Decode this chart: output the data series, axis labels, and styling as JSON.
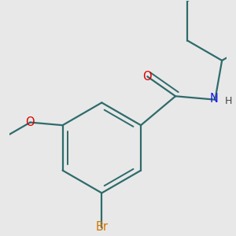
{
  "background_color": "#e8e8e8",
  "bond_color": "#2f6b6b",
  "bond_width": 1.6,
  "dbo": 0.055,
  "atom_colors": {
    "O": "#dd0000",
    "N": "#1a1aee",
    "H": "#333333",
    "Br": "#cc7700"
  },
  "font_size_main": 10.5,
  "font_size_H": 9.0
}
